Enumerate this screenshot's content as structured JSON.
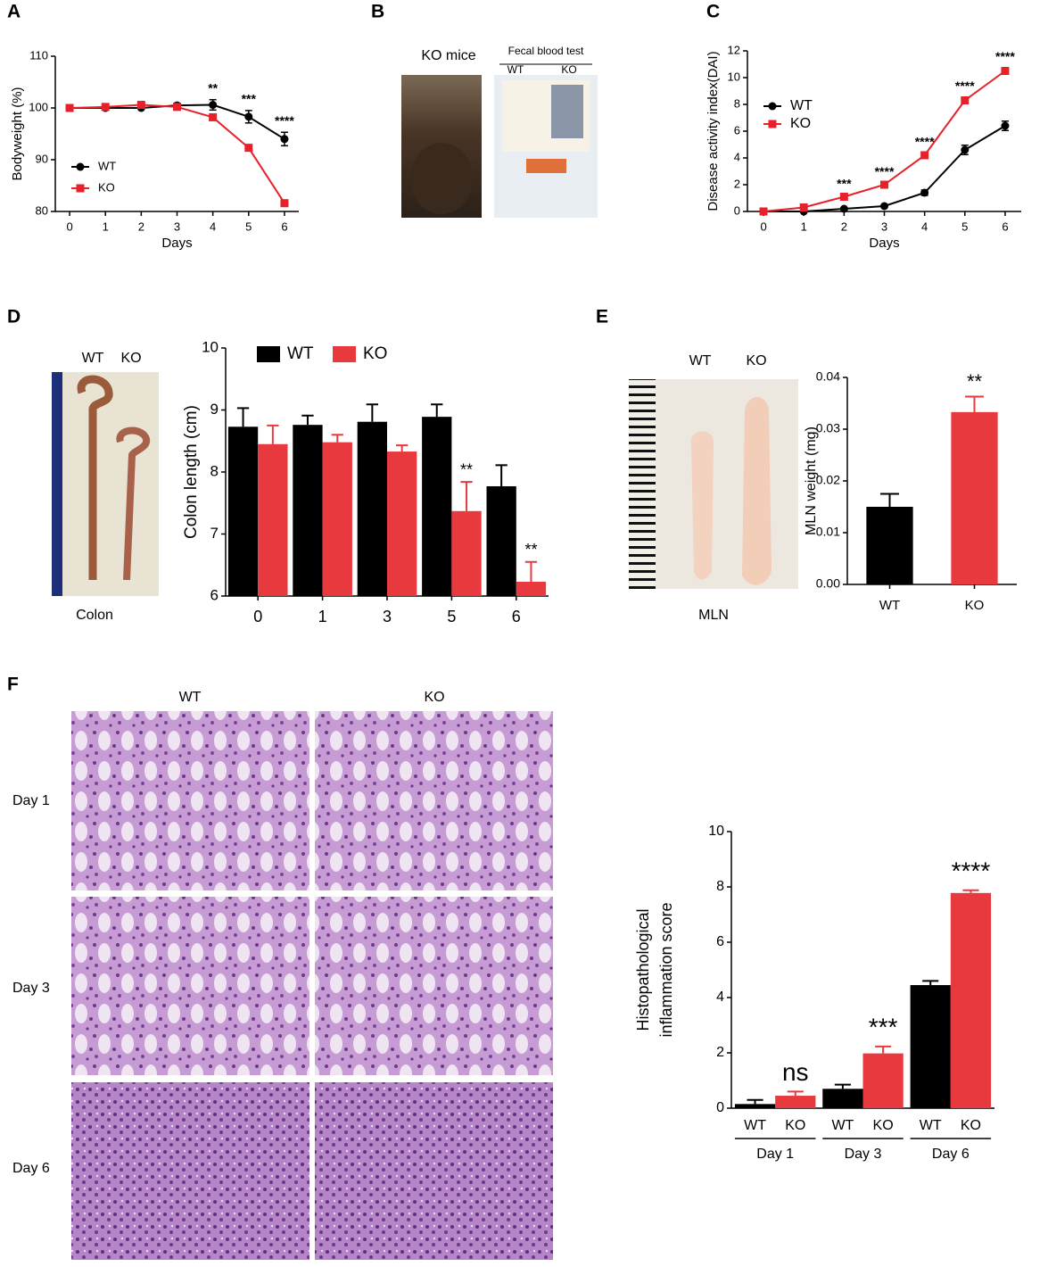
{
  "panel_labels": [
    "A",
    "B",
    "C",
    "D",
    "E",
    "F"
  ],
  "photos": {
    "b_mouse": "KO mice",
    "b_test": "Fecal blood test",
    "b_wt": "WT",
    "b_ko": "KO",
    "d_wt": "WT",
    "d_ko": "KO",
    "d_caption": "Colon",
    "e_wt": "WT",
    "e_ko": "KO",
    "e_caption": "MLN",
    "f_wt": "WT",
    "f_ko": "KO",
    "f_rows": [
      "Day 1",
      "Day 3",
      "Day 6"
    ]
  },
  "chart_data": [
    {
      "type": "line",
      "ylabel": "Bodyweight (%)",
      "xlabel": "Days",
      "x": [
        0,
        1,
        2,
        3,
        4,
        5,
        6
      ],
      "xlim": [
        -0.4,
        6.4
      ],
      "xticks": [
        0,
        1,
        2,
        3,
        4,
        5,
        6
      ],
      "ylim": [
        80,
        110
      ],
      "yticks": [
        80,
        90,
        100,
        110
      ],
      "legend": "lower-left",
      "series": [
        {
          "name": "WT",
          "color": "#000000",
          "marker": "circle",
          "values": [
            100,
            100,
            100,
            100.5,
            100.6,
            98.3,
            94
          ],
          "errors": [
            0,
            0,
            0,
            0.4,
            1,
            1.2,
            1.3
          ]
        },
        {
          "name": "KO",
          "color": "#e8202a",
          "marker": "square",
          "values": [
            100,
            100.2,
            100.6,
            100.2,
            98.2,
            92.3,
            81.6
          ],
          "errors": [
            0,
            0,
            0,
            0,
            0.3,
            0.4,
            0.5
          ]
        }
      ],
      "annotations": [
        {
          "at": 4,
          "text": "**"
        },
        {
          "at": 5,
          "text": "***"
        },
        {
          "at": 6,
          "text": "****"
        }
      ]
    },
    {
      "type": "line",
      "ylabel": "Disease activity index(DAI)",
      "xlabel": "Days",
      "x": [
        0,
        1,
        2,
        3,
        4,
        5,
        6
      ],
      "xlim": [
        -0.4,
        6.4
      ],
      "xticks": [
        0,
        1,
        2,
        3,
        4,
        5,
        6
      ],
      "ylim": [
        0,
        12
      ],
      "yticks": [
        0,
        2,
        4,
        6,
        8,
        10,
        12
      ],
      "legend": "upper-left",
      "series": [
        {
          "name": "WT",
          "color": "#000000",
          "marker": "circle",
          "values": [
            0,
            0,
            0.2,
            0.4,
            1.4,
            4.6,
            6.4
          ],
          "errors": [
            0,
            0,
            0.05,
            0.1,
            0.2,
            0.35,
            0.35
          ]
        },
        {
          "name": "KO",
          "color": "#e8202a",
          "marker": "square",
          "values": [
            0,
            0.3,
            1.1,
            2.0,
            4.2,
            8.3,
            10.5
          ],
          "errors": [
            0,
            0,
            0.1,
            0.1,
            0.15,
            0.2,
            0.2
          ]
        }
      ],
      "annotations": [
        {
          "at": 2,
          "text": "***"
        },
        {
          "at": 3,
          "text": "****"
        },
        {
          "at": 4,
          "text": "****"
        },
        {
          "at": 5,
          "text": "****"
        },
        {
          "at": 6,
          "text": "****"
        }
      ]
    },
    {
      "type": "bar",
      "ylabel": "Colon length (cm)",
      "categories": [
        "0",
        "1",
        "3",
        "5",
        "6"
      ],
      "ylim": [
        6,
        10
      ],
      "yticks": [
        6,
        7,
        8,
        9,
        10
      ],
      "legend": "top",
      "series": [
        {
          "name": "WT",
          "color": "#000000",
          "values": [
            8.73,
            8.76,
            8.81,
            8.89,
            7.77
          ],
          "errors": [
            0.3,
            0.15,
            0.28,
            0.2,
            0.34
          ]
        },
        {
          "name": "KO",
          "color": "#e8393f",
          "values": [
            8.45,
            8.48,
            8.33,
            7.37,
            6.23
          ],
          "errors": [
            0.3,
            0.12,
            0.1,
            0.47,
            0.32
          ]
        }
      ],
      "annotations": [
        {
          "at": "5",
          "text": "**"
        },
        {
          "at": "6",
          "text": "**"
        }
      ]
    },
    {
      "type": "bar",
      "ylabel": "MLN weight (mg)",
      "categories": [
        "WT",
        "KO"
      ],
      "ylim": [
        0,
        0.04
      ],
      "yticks": [
        {
          "value": 0,
          "label": "0.00"
        },
        0.01,
        0.02,
        0.03,
        0.04
      ],
      "series": [
        {
          "colors": [
            "#000000",
            "#e8393f"
          ],
          "values": [
            0.015,
            0.0333
          ],
          "errors": [
            0.0025,
            0.003
          ]
        }
      ],
      "annotations": [
        {
          "at": "KO",
          "text": "**"
        }
      ]
    },
    {
      "type": "bar",
      "ylabel": [
        "Histopathological",
        "inflammation score"
      ],
      "categories": [
        "Day 1",
        "Day 3",
        "Day 6"
      ],
      "ylim": [
        0,
        10
      ],
      "yticks": [
        0,
        2,
        4,
        6,
        8,
        10
      ],
      "series": [
        {
          "name": "WT",
          "color": "#000000",
          "values": [
            0.15,
            0.7,
            4.45
          ],
          "errors": [
            0.15,
            0.15,
            0.15
          ]
        },
        {
          "name": "KO",
          "color": "#e8393f",
          "values": [
            0.45,
            1.98,
            7.78
          ],
          "errors": [
            0.15,
            0.25,
            0.1
          ]
        }
      ],
      "annotations": [
        {
          "at": "Day 1",
          "text": "ns"
        },
        {
          "at": "Day 3",
          "text": "***"
        },
        {
          "at": "Day 6",
          "text": "****"
        }
      ]
    }
  ]
}
